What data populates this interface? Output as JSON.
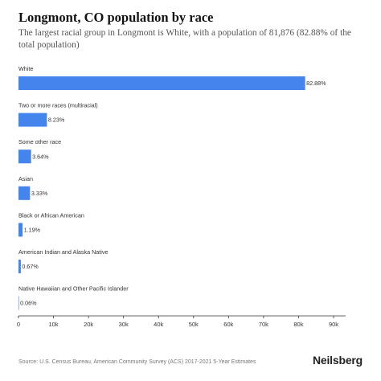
{
  "title": "Longmont, CO population by race",
  "subtitle": "The largest racial group in Longmont is White, with a population of 81,876 (82.88% of the total population)",
  "source": "Source: U.S. Census Bureau, American Community Survey (ACS) 2017-2021 5-Year Estimates",
  "brand": "Neilsberg",
  "colors": {
    "bar": "#4384ed",
    "axis": "#333333",
    "grid": "#e6e6e6"
  },
  "chart_data": {
    "type": "bar",
    "orientation": "horizontal",
    "categories": [
      "White",
      "Two or more races (multiracial)",
      "Some other race",
      "Asian",
      "Black or African American",
      "American Indian and Alaska Native",
      "Native Hawaiian and Other Pacific Islander"
    ],
    "values": [
      81876,
      8130,
      3596,
      3290,
      1176,
      662,
      59
    ],
    "data_labels": [
      "82.88%",
      "8.23%",
      "3.64%",
      "3.33%",
      "1.19%",
      "0.67%",
      "0.06%"
    ],
    "x_ticks": [
      "0",
      "10k",
      "20k",
      "30k",
      "40k",
      "50k",
      "60k",
      "70k",
      "80k",
      "90k"
    ],
    "xlim": [
      0,
      90000
    ],
    "grid": false,
    "legend": "none"
  }
}
